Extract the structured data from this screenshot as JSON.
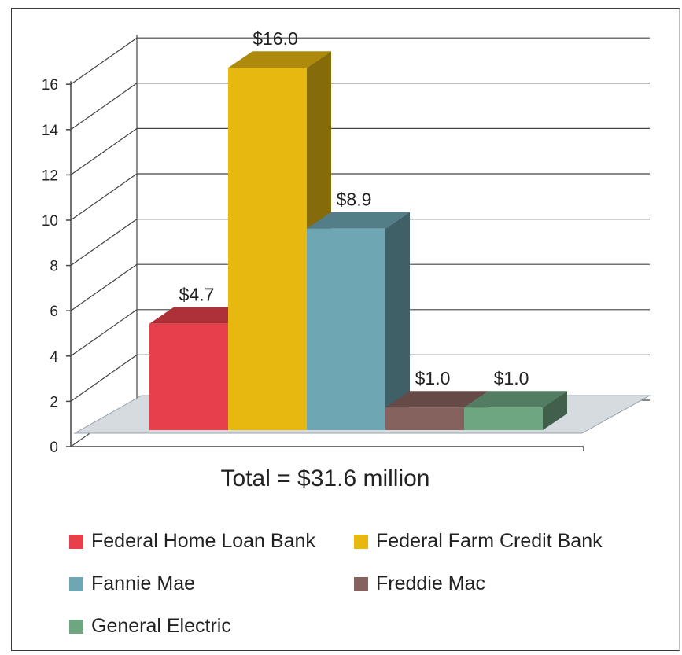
{
  "chart_data": {
    "type": "bar",
    "categories": [
      "Federal Home Loan Bank",
      "Federal Farm Credit Bank",
      "Fannie Mae",
      "Freddie Mac",
      "General Electric"
    ],
    "values": [
      4.7,
      16.0,
      8.9,
      1.0,
      1.0
    ],
    "data_labels": [
      "$4.7",
      "$16.0",
      "$8.9",
      "$1.0",
      "$1.0"
    ],
    "colors": [
      "#e8404b",
      "#e6b810",
      "#6fa6b4",
      "#86625f",
      "#6ea682"
    ],
    "ylim": [
      0,
      16
    ],
    "yticks": [
      "0",
      "2",
      "4",
      "6",
      "8",
      "10",
      "12",
      "14",
      "16"
    ],
    "grid": true,
    "three_d": true,
    "legend_placement": "bottom",
    "total_label": "Total = $31.6 million"
  }
}
